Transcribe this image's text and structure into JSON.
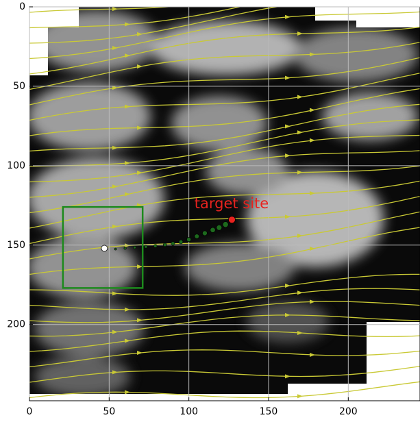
{
  "chart_data": {
    "type": "image",
    "annotation": "target site",
    "annotation_color": "#e8231f",
    "xlim": [
      0,
      245
    ],
    "ylim": [
      0,
      248
    ],
    "y_inverted": true,
    "xticks": [
      0,
      50,
      100,
      150,
      200
    ],
    "yticks": [
      0,
      50,
      100,
      150,
      200
    ],
    "grid": true,
    "box": {
      "x": [
        21,
        71
      ],
      "y": [
        126,
        177
      ],
      "color": "#1d8a1d"
    },
    "path": {
      "x": [
        54,
        60,
        66,
        73,
        79,
        85,
        90,
        95,
        100,
        105,
        110,
        115,
        119,
        123
      ],
      "y": [
        152.5,
        152,
        151.5,
        151,
        150.5,
        149.8,
        149,
        148,
        146.5,
        144.5,
        142.5,
        140.5,
        139,
        137
      ],
      "color": "#1d6a1d"
    },
    "start": {
      "x": 47,
      "y": 152,
      "color": "#ffffff"
    },
    "target": {
      "x": 127,
      "y": 134,
      "color": "#e8231f"
    },
    "stream_color": "#c9c935"
  }
}
